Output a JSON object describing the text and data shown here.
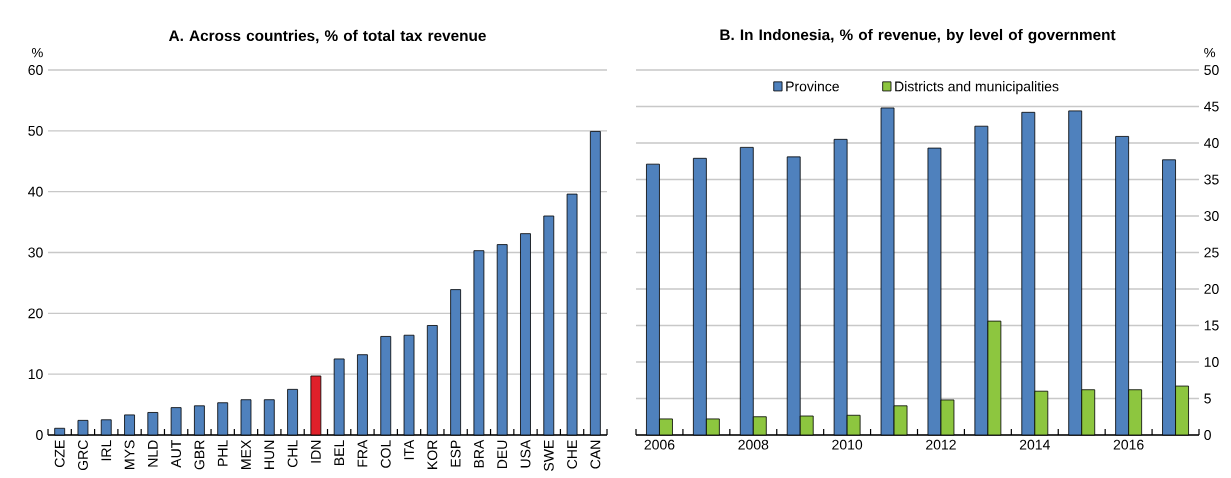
{
  "chart_data": [
    {
      "type": "bar",
      "title": "A. Across countries, % of total tax revenue",
      "ylabel": "%",
      "categories": [
        "CZE",
        "GRC",
        "IRL",
        "MYS",
        "NLD",
        "AUT",
        "GBR",
        "PHL",
        "MEX",
        "HUN",
        "CHL",
        "IDN",
        "BEL",
        "FRA",
        "COL",
        "ITA",
        "KOR",
        "ESP",
        "BRA",
        "DEU",
        "USA",
        "SWE",
        "CHE",
        "CAN"
      ],
      "values": [
        1.1,
        2.4,
        2.5,
        3.3,
        3.7,
        4.5,
        4.8,
        5.3,
        5.8,
        5.8,
        7.5,
        9.7,
        12.5,
        13.2,
        16.2,
        16.4,
        18.0,
        23.9,
        30.3,
        31.3,
        33.1,
        36.0,
        39.6,
        49.9
      ],
      "colors": [
        "#4f81bd",
        "#4f81bd",
        "#4f81bd",
        "#4f81bd",
        "#4f81bd",
        "#4f81bd",
        "#4f81bd",
        "#4f81bd",
        "#4f81bd",
        "#4f81bd",
        "#4f81bd",
        "#e0202a",
        "#4f81bd",
        "#4f81bd",
        "#4f81bd",
        "#4f81bd",
        "#4f81bd",
        "#4f81bd",
        "#4f81bd",
        "#4f81bd",
        "#4f81bd",
        "#4f81bd",
        "#4f81bd",
        "#4f81bd"
      ],
      "ylim": [
        0,
        60
      ],
      "yticks": [
        0,
        10,
        20,
        30,
        40,
        50,
        60
      ],
      "grid": "y"
    },
    {
      "type": "bar",
      "title": "B. In Indonesia, % of revenue, by level of government",
      "ylabel": "%",
      "categories": [
        "2006",
        null,
        "2008",
        null,
        "2010",
        null,
        "2012",
        null,
        "2014",
        null,
        "2016",
        null
      ],
      "series": [
        {
          "name": "Province",
          "color": "#4f81bd",
          "values": [
            37.1,
            37.9,
            39.4,
            38.1,
            40.5,
            44.8,
            39.3,
            42.3,
            44.2,
            44.4,
            40.9,
            37.7
          ]
        },
        {
          "name": "Districts and municipalities",
          "color": "#8dc63f",
          "values": [
            2.2,
            2.2,
            2.5,
            2.6,
            2.7,
            4.0,
            4.8,
            15.6,
            6.0,
            6.2,
            6.2,
            6.7
          ]
        }
      ],
      "ylim": [
        0,
        50
      ],
      "yticks": [
        0,
        5,
        10,
        15,
        20,
        25,
        30,
        35,
        40,
        45,
        50
      ],
      "grid": "y",
      "legend": "top"
    }
  ]
}
